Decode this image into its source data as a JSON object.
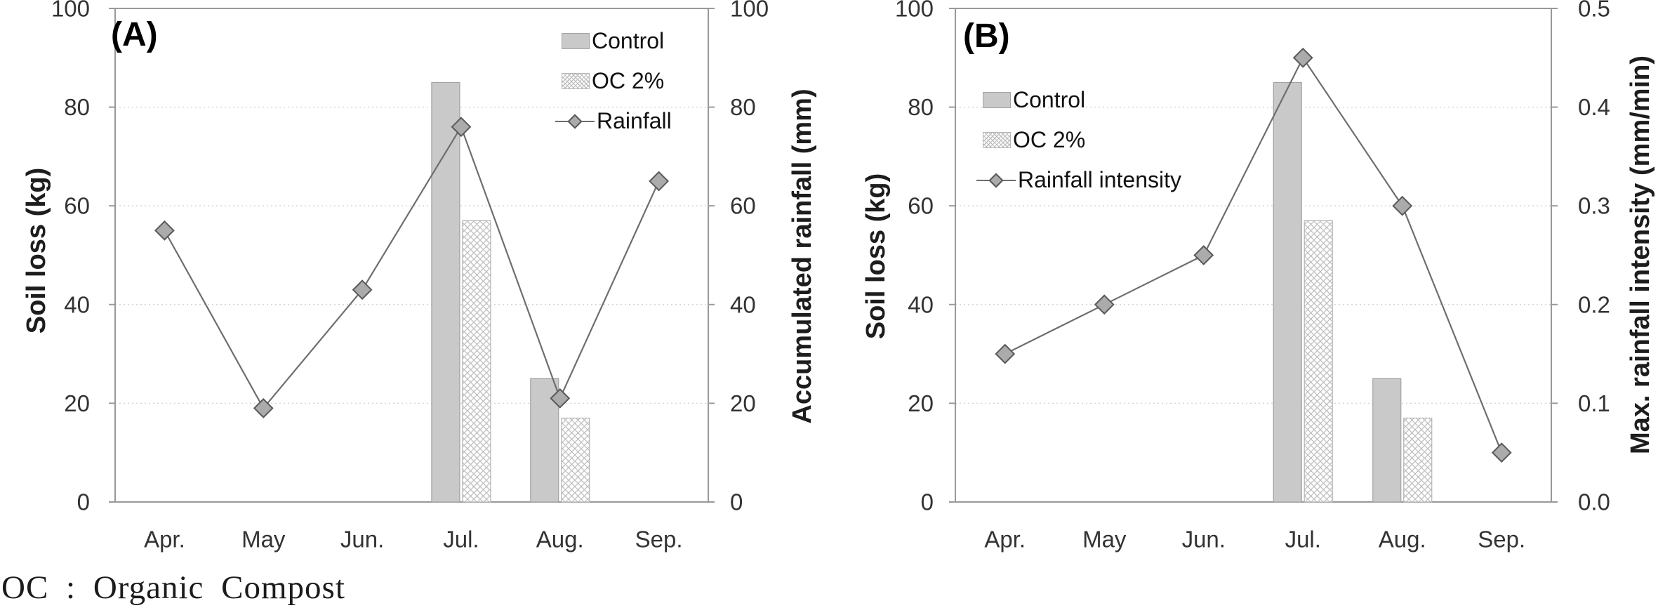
{
  "footnote": "OC : Organic Compost",
  "colors": {
    "background": "#ffffff",
    "bar_fill": "#c9c9c9",
    "bar_stroke": "#a3a3a3",
    "hatch_stroke": "#bdbdbd",
    "hatch_border": "#b5b5b5",
    "line": "#6e6e6e",
    "marker_fill": "#ababab",
    "marker_stroke": "#595959",
    "gridline": "#cfcfcf",
    "axis": "#999999",
    "tick_text": "#333333"
  },
  "chart_data": [
    {
      "type": "bar",
      "panel_label": "(A)",
      "categories": [
        "Apr.",
        "May",
        "Jun.",
        "Jul.",
        "Aug.",
        "Sep."
      ],
      "series": [
        {
          "name": "Control",
          "kind": "bar",
          "pattern": "solid",
          "axis": "left",
          "values": [
            null,
            null,
            null,
            85,
            25,
            null
          ]
        },
        {
          "name": "OC 2%",
          "kind": "bar",
          "pattern": "crosshatch",
          "axis": "left",
          "values": [
            null,
            null,
            null,
            57,
            17,
            null
          ]
        },
        {
          "name": "Rainfall",
          "kind": "line",
          "marker": "diamond",
          "axis": "right",
          "values": [
            55,
            19,
            43,
            76,
            21,
            65
          ]
        }
      ],
      "left_axis": {
        "label": "Soil loss (kg)",
        "min": 0,
        "max": 100,
        "tick_labels": [
          "0",
          "20",
          "40",
          "60",
          "80",
          "100"
        ]
      },
      "right_axis": {
        "label": "Accumulated rainfall (mm)",
        "min": 0,
        "max": 100,
        "tick_labels": [
          "0",
          "20",
          "40",
          "60",
          "80",
          "100"
        ]
      },
      "grid": "horizontal-dashed",
      "legend_position": "inside-top-right"
    },
    {
      "type": "bar",
      "panel_label": "(B)",
      "categories": [
        "Apr.",
        "May",
        "Jun.",
        "Jul.",
        "Aug.",
        "Sep."
      ],
      "series": [
        {
          "name": "Control",
          "kind": "bar",
          "pattern": "solid",
          "axis": "left",
          "values": [
            null,
            null,
            null,
            85,
            25,
            null
          ]
        },
        {
          "name": "OC 2%",
          "kind": "bar",
          "pattern": "crosshatch",
          "axis": "left",
          "values": [
            null,
            null,
            null,
            57,
            17,
            null
          ]
        },
        {
          "name": "Rainfall intensity",
          "kind": "line",
          "marker": "diamond",
          "axis": "right",
          "values": [
            0.15,
            0.2,
            0.25,
            0.45,
            0.3,
            0.05
          ]
        }
      ],
      "left_axis": {
        "label": "Soil loss (kg)",
        "min": 0,
        "max": 100,
        "tick_labels": [
          "0",
          "20",
          "40",
          "60",
          "80",
          "100"
        ]
      },
      "right_axis": {
        "label": "Max. rainfall intensity (mm/min)",
        "min": 0,
        "max": 0.5,
        "tick_labels": [
          "0.0",
          "0.1",
          "0.2",
          "0.3",
          "0.4",
          "0.5"
        ]
      },
      "grid": "horizontal-dashed",
      "legend_position": "inside-top-left"
    }
  ]
}
